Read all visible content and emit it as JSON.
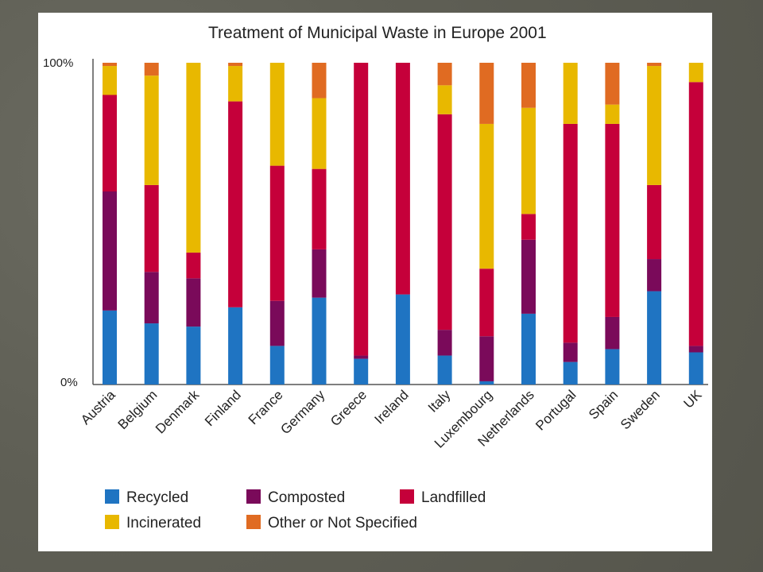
{
  "chart_data": {
    "type": "bar",
    "stacked": true,
    "title": "Treatment of Municipal Waste in Europe 2001",
    "xlabel": "",
    "ylabel": "",
    "ylim": [
      0,
      100
    ],
    "ytick_labels": [
      "100%",
      "0%"
    ],
    "categories": [
      "Austria",
      "Belgium",
      "Denmark",
      "Finland",
      "France",
      "Germany",
      "Greece",
      "Ireland",
      "Italy",
      "Luxembourg",
      "Netherlands",
      "Portugal",
      "Spain",
      "Sweden",
      "UK"
    ],
    "series": [
      {
        "name": "Recycled",
        "color": "#1f74c2",
        "values": [
          23,
          19,
          18,
          24,
          12,
          27,
          8,
          28,
          9,
          1,
          22,
          7,
          11,
          29,
          10
        ]
      },
      {
        "name": "Composted",
        "color": "#7a0a5a",
        "values": [
          37,
          16,
          15,
          0,
          14,
          15,
          1,
          0,
          8,
          14,
          23,
          6,
          10,
          10,
          2
        ]
      },
      {
        "name": "Landfilled",
        "color": "#c5003a",
        "values": [
          30,
          27,
          8,
          64,
          42,
          25,
          91,
          72,
          67,
          21,
          8,
          68,
          60,
          23,
          82
        ]
      },
      {
        "name": "Incinerated",
        "color": "#e8b800",
        "values": [
          9,
          34,
          59,
          11,
          32,
          22,
          0,
          0,
          9,
          45,
          33,
          19,
          6,
          37,
          6
        ]
      },
      {
        "name": "Other or Not Specified",
        "color": "#e06b22",
        "values": [
          1,
          4,
          0,
          1,
          0,
          11,
          0,
          0,
          7,
          19,
          14,
          0,
          13,
          1,
          0
        ]
      }
    ],
    "legend_position": "bottom",
    "grid": false
  }
}
